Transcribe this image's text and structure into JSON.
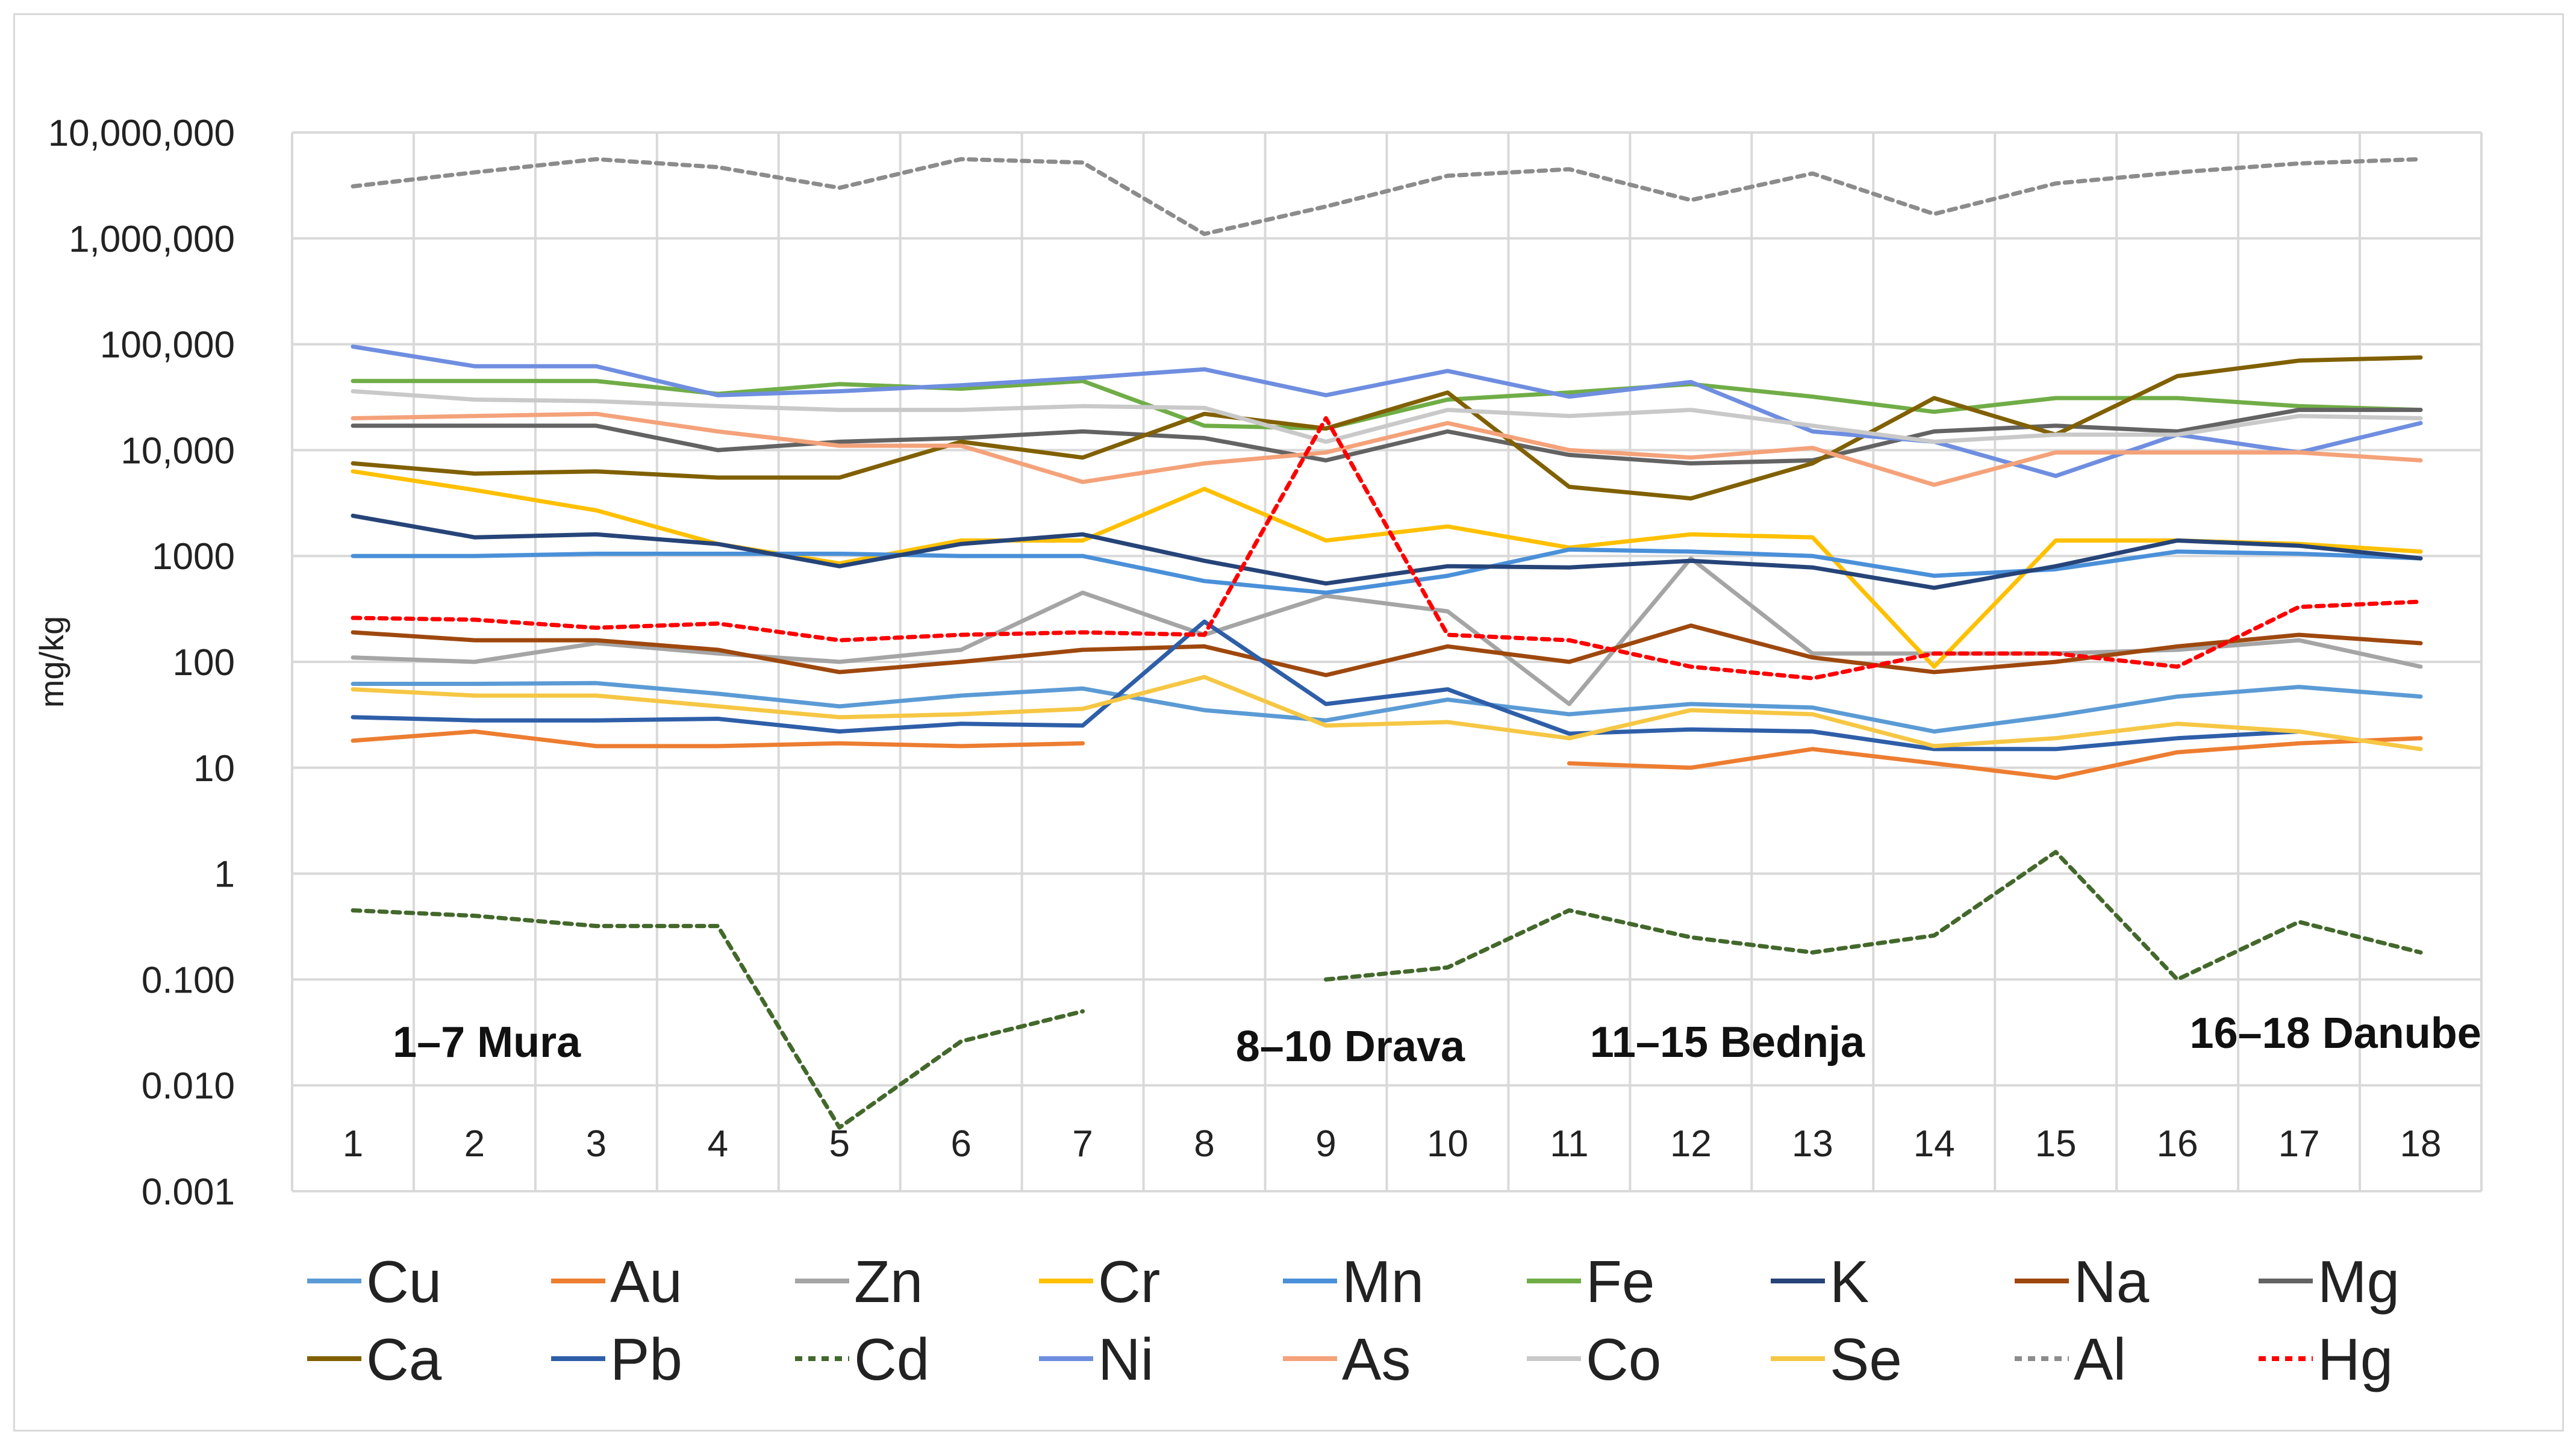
{
  "chart_data": {
    "type": "line",
    "title": "",
    "ylabel": "mg/kg",
    "xlabel": "",
    "yscale": "log",
    "ylim": [
      0.001,
      10000000
    ],
    "categories": [
      "1",
      "2",
      "3",
      "4",
      "5",
      "6",
      "7",
      "8",
      "9",
      "10",
      "11",
      "12",
      "13",
      "14",
      "15",
      "16",
      "17",
      "18"
    ],
    "y_tick_labels": [
      "0.001",
      "0.010",
      "0.100",
      "1",
      "10",
      "100",
      "1000",
      "10,000",
      "100,000",
      "1,000,000",
      "10,000,000"
    ],
    "y_tick_values": [
      0.001,
      0.01,
      0.1,
      1,
      10,
      100,
      1000,
      10000,
      100000,
      1000000,
      10000000
    ],
    "grid": true,
    "legend_position": "bottom",
    "annotations": [
      {
        "text": "1–7 Mura",
        "x": 2.1
      },
      {
        "text": "8–10 Drava",
        "x": 9.2
      },
      {
        "text": "11–15 Bednja",
        "x": 12.3
      },
      {
        "text": "16–18 Danube",
        "x": 17.3
      }
    ],
    "series": [
      {
        "name": "Cu",
        "color": "#5b9bd5",
        "dash": false,
        "values": [
          62,
          62,
          63,
          50,
          38,
          48,
          56,
          35,
          28,
          44,
          32,
          40,
          37,
          22,
          31,
          47,
          58,
          47
        ]
      },
      {
        "name": "Au",
        "color": "#ed7d31",
        "dash": false,
        "values": [
          18,
          22,
          16,
          16,
          17,
          16,
          17,
          null,
          null,
          null,
          11,
          10,
          15,
          11,
          8,
          14,
          17,
          19
        ]
      },
      {
        "name": "Zn",
        "color": "#a5a5a5",
        "dash": false,
        "values": [
          110,
          100,
          150,
          120,
          100,
          130,
          450,
          180,
          420,
          300,
          40,
          950,
          120,
          120,
          120,
          130,
          160,
          90
        ]
      },
      {
        "name": "Cr",
        "color": "#ffc000",
        "dash": false,
        "values": [
          6300,
          4200,
          2700,
          1300,
          850,
          1400,
          1400,
          4300,
          1400,
          1900,
          1200,
          1600,
          1500,
          90,
          1400,
          1400,
          1300,
          1100
        ]
      },
      {
        "name": "Mn",
        "color": "#4a90d9",
        "dash": false,
        "values": [
          1000,
          1000,
          1050,
          1050,
          1050,
          1000,
          1000,
          580,
          450,
          650,
          1150,
          1100,
          1000,
          650,
          750,
          1100,
          1050,
          950
        ]
      },
      {
        "name": "Fe",
        "color": "#70ad47",
        "dash": false,
        "values": [
          45000,
          45000,
          45000,
          34000,
          42000,
          38000,
          45000,
          17000,
          16000,
          30000,
          35000,
          42000,
          32000,
          23000,
          31000,
          31000,
          26000,
          24000
        ]
      },
      {
        "name": "K",
        "color": "#264478",
        "dash": false,
        "values": [
          2400,
          1500,
          1600,
          1300,
          800,
          1300,
          1600,
          900,
          550,
          800,
          780,
          900,
          780,
          500,
          800,
          1400,
          1250,
          950
        ]
      },
      {
        "name": "Na",
        "color": "#9e480e",
        "dash": false,
        "values": [
          190,
          160,
          160,
          130,
          80,
          100,
          130,
          140,
          75,
          140,
          100,
          220,
          110,
          80,
          100,
          140,
          180,
          150
        ]
      },
      {
        "name": "Mg",
        "color": "#636363",
        "dash": false,
        "values": [
          17000,
          17000,
          17000,
          10000,
          12000,
          13000,
          15000,
          13000,
          8000,
          15000,
          9000,
          7500,
          8000,
          15000,
          17000,
          15000,
          24000,
          24000
        ]
      },
      {
        "name": "Ca",
        "color": "#806000",
        "dash": false,
        "values": [
          7500,
          6000,
          6300,
          5500,
          5500,
          12000,
          8500,
          22000,
          16000,
          35000,
          4500,
          3500,
          7500,
          31000,
          14000,
          50000,
          70000,
          75000
        ]
      },
      {
        "name": "Pb",
        "color": "#2e5ea8",
        "dash": false,
        "values": [
          30,
          28,
          28,
          29,
          22,
          26,
          25,
          240,
          40,
          55,
          21,
          23,
          22,
          15,
          15,
          19,
          22,
          null
        ]
      },
      {
        "name": "Cd",
        "color": "#43682b",
        "dash": true,
        "values": [
          0.45,
          0.4,
          0.32,
          0.32,
          0.004,
          0.026,
          0.05,
          null,
          0.1,
          0.13,
          0.45,
          0.25,
          0.18,
          0.26,
          1.6,
          0.1,
          0.35,
          0.18
        ]
      },
      {
        "name": "Ni",
        "color": "#6f8ee0",
        "dash": false,
        "values": [
          95000,
          62000,
          62000,
          33000,
          36000,
          41000,
          48000,
          58000,
          33000,
          56000,
          32000,
          44000,
          15000,
          12000,
          5700,
          14000,
          9500,
          18000
        ]
      },
      {
        "name": "As",
        "color": "#f4a27a",
        "dash": false,
        "values": [
          20000,
          21000,
          22000,
          15000,
          11000,
          11000,
          5000,
          7500,
          9500,
          18000,
          10000,
          8500,
          10500,
          4700,
          9500,
          9500,
          9500,
          8000
        ]
      },
      {
        "name": "Co",
        "color": "#c9c9c9",
        "dash": false,
        "values": [
          36000,
          30000,
          29000,
          26000,
          24000,
          24000,
          26000,
          25000,
          12000,
          24000,
          21000,
          24000,
          17000,
          12000,
          14000,
          14000,
          21000,
          20000
        ]
      },
      {
        "name": "Se",
        "color": "#f6c744",
        "dash": false,
        "values": [
          55,
          48,
          48,
          38,
          30,
          32,
          36,
          72,
          25,
          27,
          19,
          35,
          32,
          16,
          19,
          26,
          22,
          15
        ]
      },
      {
        "name": "Al",
        "color": "#8c8c8c",
        "dash": true,
        "values": [
          3100000,
          4200000,
          5600000,
          4700000,
          3000000,
          5600000,
          5200000,
          1100000,
          2000000,
          3900000,
          4500000,
          2300000,
          4100000,
          1700000,
          3300000,
          4200000,
          5100000,
          5600000
        ]
      },
      {
        "name": "Hg",
        "color": "#ff0000",
        "dash": true,
        "values": [
          260,
          250,
          210,
          230,
          160,
          180,
          190,
          180,
          20000,
          180,
          160,
          90,
          70,
          120,
          120,
          90,
          330,
          370
        ]
      }
    ]
  }
}
